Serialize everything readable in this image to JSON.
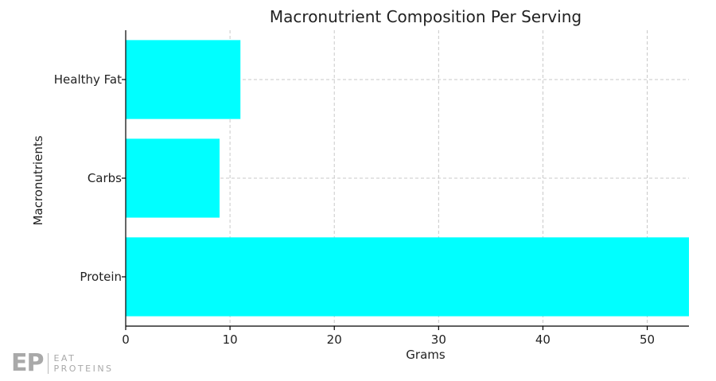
{
  "chart_data": {
    "type": "bar",
    "orientation": "horizontal",
    "title": "Macronutrient Composition Per Serving",
    "xlabel": "Grams",
    "ylabel": "Macronutrients",
    "categories": [
      "Protein",
      "Carbs",
      "Healthy Fat"
    ],
    "values": [
      54,
      9,
      11
    ],
    "xlim": [
      0,
      54
    ],
    "xticks": [
      0,
      10,
      20,
      30,
      40,
      50
    ],
    "grid": true,
    "bar_color": "#00FFFF"
  },
  "logo": {
    "mark": "EP",
    "line1": "EAT",
    "line2": "PROTEINS",
    "color": "#a9a9a9"
  }
}
